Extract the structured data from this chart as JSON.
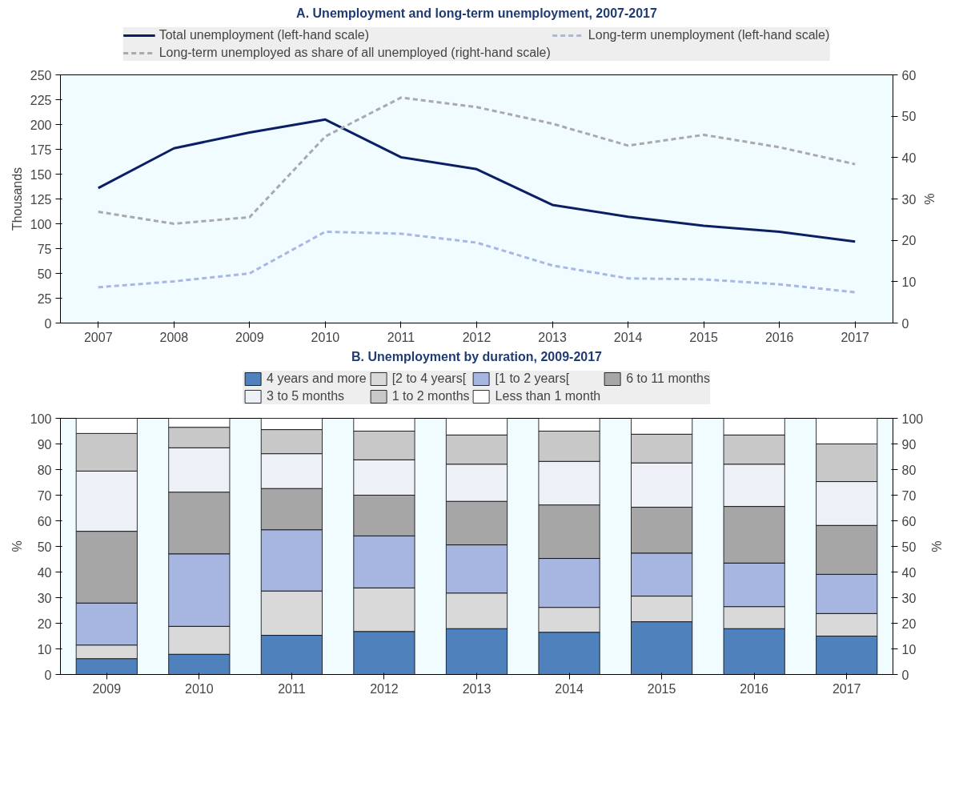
{
  "chart_data": [
    {
      "type": "line",
      "title": "A. Unemployment and long-term unemployment, 2007-2017",
      "ylabel": "Thousands",
      "y2label": "%",
      "x": [
        2007,
        2008,
        2009,
        2010,
        2011,
        2012,
        2013,
        2014,
        2015,
        2016,
        2017
      ],
      "xlim": [
        2006.5,
        2017.5
      ],
      "xticks": [
        2007,
        2008,
        2009,
        2010,
        2011,
        2012,
        2013,
        2014,
        2015,
        2016,
        2017
      ],
      "ylim": [
        0,
        250
      ],
      "yticks": [
        0,
        25,
        50,
        75,
        100,
        125,
        150,
        175,
        200,
        225,
        250
      ],
      "y2lim": [
        0,
        60
      ],
      "y2ticks": [
        0,
        10,
        20,
        30,
        40,
        50,
        60
      ],
      "legend": "top",
      "marker": "none",
      "series": [
        {
          "name": "Total unemployment (left-hand scale)",
          "color": "#0b1f65",
          "line_style": "solid",
          "values": [
            136,
            176,
            192,
            205,
            167,
            155,
            119,
            107,
            98,
            92,
            82
          ]
        },
        {
          "name": "Long-term unemployment (left-hand scale)",
          "color": "#a6b8e3",
          "line_style": "dashed",
          "values": [
            36,
            42,
            50,
            92,
            90,
            81,
            58,
            45,
            44,
            39,
            31
          ]
        },
        {
          "name": "Long-term unemployed as share of all unemployed (right-hand scale)",
          "color": "#aaaaaa",
          "line_style": "dashed",
          "axis": "y2",
          "values": [
            26.9,
            24,
            25.6,
            45.1,
            54.5,
            52.2,
            48.2,
            42.9,
            45.5,
            42.5,
            38.4
          ]
        }
      ]
    },
    {
      "type": "bar",
      "stacked": true,
      "title": "B. Unemployment by duration, 2009-2017",
      "ylabel": "%",
      "y2label": "%",
      "categories": [
        "2009",
        "2010",
        "2011",
        "2012",
        "2013",
        "2014",
        "2015",
        "2016",
        "2017"
      ],
      "ylim": [
        0,
        100
      ],
      "yticks": [
        0,
        10,
        20,
        30,
        40,
        50,
        60,
        70,
        80,
        90,
        100
      ],
      "y2lim": [
        0,
        100
      ],
      "y2ticks": [
        0,
        10,
        20,
        30,
        40,
        50,
        60,
        70,
        80,
        90,
        100
      ],
      "legend": "top",
      "series": [
        {
          "name": "4 years and more",
          "color": "#4f81bd",
          "values": [
            6.2,
            7.9,
            15.3,
            16.8,
            17.9,
            16.5,
            20.6,
            17.9,
            15
          ]
        },
        {
          "name": "[2 to 4 years[",
          "color": "#d9d9d9",
          "values": [
            5.3,
            10.9,
            17.3,
            17,
            13.9,
            9.7,
            10,
            8.6,
            8.8
          ]
        },
        {
          "name": "[1 to 2 years[",
          "color": "#a6b6e0",
          "values": [
            16.4,
            28.3,
            23.9,
            20.3,
            18.8,
            19.1,
            16.8,
            17,
            15.3
          ]
        },
        {
          "name": "6 to 11 months",
          "color": "#a6a6a6",
          "values": [
            28,
            24.1,
            16.1,
            15.9,
            17,
            20.9,
            17.9,
            22.1,
            19.1
          ]
        },
        {
          "name": "3 to 5 months",
          "color": "#eef0f8",
          "values": [
            23.5,
            17.3,
            13.6,
            13.8,
            14.5,
            17,
            17.3,
            16.5,
            17.1
          ]
        },
        {
          "name": "1 to 2 months",
          "color": "#c8c8c8",
          "values": [
            14.7,
            8,
            9.4,
            11.2,
            11.4,
            11.8,
            11.2,
            11.4,
            14.7
          ]
        },
        {
          "name": "Less than 1 month",
          "color": "#ffffff",
          "values": [
            5.9,
            3.5,
            4.4,
            5,
            6.5,
            5,
            6.2,
            6.5,
            10
          ]
        }
      ]
    }
  ]
}
